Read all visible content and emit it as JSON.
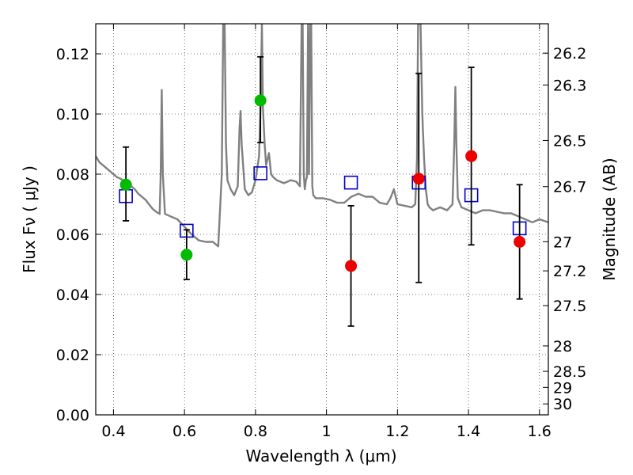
{
  "chart_data": {
    "type": "scatter",
    "xlabel": "Wavelength  λ (μm)",
    "ylabel": "Flux  Fν  ( μJy )",
    "ylabel_right": "Magnitude (AB)",
    "xlim": [
      0.35,
      1.625
    ],
    "ylim": [
      0.0,
      0.13
    ],
    "grid": true,
    "x_ticks": [
      {
        "value": 0.4,
        "label": "0.4"
      },
      {
        "value": 0.6,
        "label": "0.6"
      },
      {
        "value": 0.8,
        "label": "0.8"
      },
      {
        "value": 1.0,
        "label": "1"
      },
      {
        "value": 1.2,
        "label": "1.2"
      },
      {
        "value": 1.4,
        "label": "1.4"
      },
      {
        "value": 1.6,
        "label": "1.6"
      }
    ],
    "y_ticks": [
      {
        "value": 0.0,
        "label": "0.00"
      },
      {
        "value": 0.02,
        "label": "0.02"
      },
      {
        "value": 0.04,
        "label": "0.04"
      },
      {
        "value": 0.06,
        "label": "0.06"
      },
      {
        "value": 0.08,
        "label": "0.08"
      },
      {
        "value": 0.1,
        "label": "0.10"
      },
      {
        "value": 0.12,
        "label": "0.12"
      }
    ],
    "mag_ticks": [
      {
        "value": 26.2,
        "label": "26.2"
      },
      {
        "value": 26.3,
        "label": "26.3"
      },
      {
        "value": 26.5,
        "label": "26.5"
      },
      {
        "value": 26.7,
        "label": "26.7"
      },
      {
        "value": 27.0,
        "label": "27"
      },
      {
        "value": 27.2,
        "label": "27.2"
      },
      {
        "value": 27.5,
        "label": "27.5"
      },
      {
        "value": 28.0,
        "label": "28"
      },
      {
        "value": 28.5,
        "label": "28.5"
      },
      {
        "value": 29.0,
        "label": "29"
      },
      {
        "value": 30.0,
        "label": "30"
      }
    ],
    "series": [
      {
        "kind": "points-with-errors",
        "color": "#00bb00",
        "points": [
          {
            "x": 0.435,
            "y": 0.0765,
            "ylo": 0.0645,
            "yhi": 0.089
          },
          {
            "x": 0.606,
            "y": 0.0532,
            "ylo": 0.045,
            "yhi": 0.0615
          },
          {
            "x": 0.814,
            "y": 0.1045,
            "ylo": 0.0905,
            "yhi": 0.119
          }
        ]
      },
      {
        "kind": "points-with-errors",
        "color": "#ee0000",
        "points": [
          {
            "x": 1.069,
            "y": 0.0495,
            "ylo": 0.0295,
            "yhi": 0.0695
          },
          {
            "x": 1.26,
            "y": 0.0785,
            "ylo": 0.044,
            "yhi": 0.1135
          },
          {
            "x": 1.408,
            "y": 0.086,
            "ylo": 0.0565,
            "yhi": 0.1155
          },
          {
            "x": 1.544,
            "y": 0.0575,
            "ylo": 0.0385,
            "yhi": 0.0765
          }
        ]
      },
      {
        "kind": "open-squares",
        "color": "#0000cc",
        "points": [
          {
            "x": 0.435,
            "y": 0.0727
          },
          {
            "x": 0.606,
            "y": 0.0612
          },
          {
            "x": 0.814,
            "y": 0.0803
          },
          {
            "x": 1.069,
            "y": 0.0772
          },
          {
            "x": 1.26,
            "y": 0.0772
          },
          {
            "x": 1.408,
            "y": 0.073
          },
          {
            "x": 1.544,
            "y": 0.062
          }
        ]
      },
      {
        "kind": "spectrum",
        "color": "#808080",
        "x": [
          0.35,
          0.36,
          0.37,
          0.38,
          0.39,
          0.4,
          0.41,
          0.42,
          0.43,
          0.44,
          0.45,
          0.46,
          0.47,
          0.48,
          0.49,
          0.5,
          0.51,
          0.52,
          0.53,
          0.533,
          0.536,
          0.539,
          0.545,
          0.56,
          0.58,
          0.6,
          0.62,
          0.64,
          0.66,
          0.68,
          0.695,
          0.705,
          0.709,
          0.713,
          0.717,
          0.721,
          0.73,
          0.74,
          0.75,
          0.755,
          0.758,
          0.761,
          0.77,
          0.78,
          0.79,
          0.8,
          0.81,
          0.815,
          0.818,
          0.821,
          0.826,
          0.83,
          0.838,
          0.844,
          0.85,
          0.86,
          0.88,
          0.9,
          0.915,
          0.925,
          0.93,
          0.933,
          0.936,
          0.939,
          0.942,
          0.945,
          0.948,
          0.951,
          0.954,
          0.957,
          0.96,
          0.963,
          0.97,
          0.99,
          1.01,
          1.03,
          1.05,
          1.07,
          1.09,
          1.11,
          1.13,
          1.15,
          1.17,
          1.18,
          1.19,
          1.2,
          1.22,
          1.24,
          1.25,
          1.255,
          1.258,
          1.262,
          1.265,
          1.27,
          1.275,
          1.28,
          1.285,
          1.29,
          1.3,
          1.32,
          1.34,
          1.355,
          1.36,
          1.363,
          1.366,
          1.37,
          1.38,
          1.4,
          1.42,
          1.44,
          1.46,
          1.48,
          1.5,
          1.52,
          1.54,
          1.56,
          1.58,
          1.6,
          1.625
        ],
        "y": [
          0.086,
          0.084,
          0.083,
          0.082,
          0.081,
          0.08,
          0.079,
          0.0785,
          0.0775,
          0.077,
          0.076,
          0.075,
          0.0735,
          0.0725,
          0.0715,
          0.07,
          0.0685,
          0.0675,
          0.0668,
          0.08,
          0.108,
          0.08,
          0.0668,
          0.066,
          0.065,
          0.0625,
          0.06,
          0.058,
          0.0575,
          0.0575,
          0.056,
          0.08,
          0.13,
          0.13,
          0.09,
          0.078,
          0.075,
          0.073,
          0.076,
          0.095,
          0.101,
          0.09,
          0.075,
          0.073,
          0.074,
          0.078,
          0.086,
          0.105,
          0.13,
          0.102,
          0.09,
          0.083,
          0.087,
          0.08,
          0.079,
          0.078,
          0.077,
          0.078,
          0.0775,
          0.076,
          0.13,
          0.13,
          0.08,
          0.075,
          0.078,
          0.079,
          0.13,
          0.08,
          0.13,
          0.13,
          0.076,
          0.073,
          0.072,
          0.072,
          0.0715,
          0.0705,
          0.0705,
          0.0725,
          0.0735,
          0.0725,
          0.0725,
          0.0705,
          0.07,
          0.072,
          0.075,
          0.07,
          0.0695,
          0.069,
          0.07,
          0.085,
          0.13,
          0.13,
          0.13,
          0.1,
          0.085,
          0.075,
          0.07,
          0.069,
          0.068,
          0.069,
          0.068,
          0.07,
          0.09,
          0.109,
          0.09,
          0.072,
          0.069,
          0.068,
          0.067,
          0.068,
          0.068,
          0.0675,
          0.067,
          0.067,
          0.066,
          0.065,
          0.064,
          0.065,
          0.064
        ]
      }
    ]
  }
}
